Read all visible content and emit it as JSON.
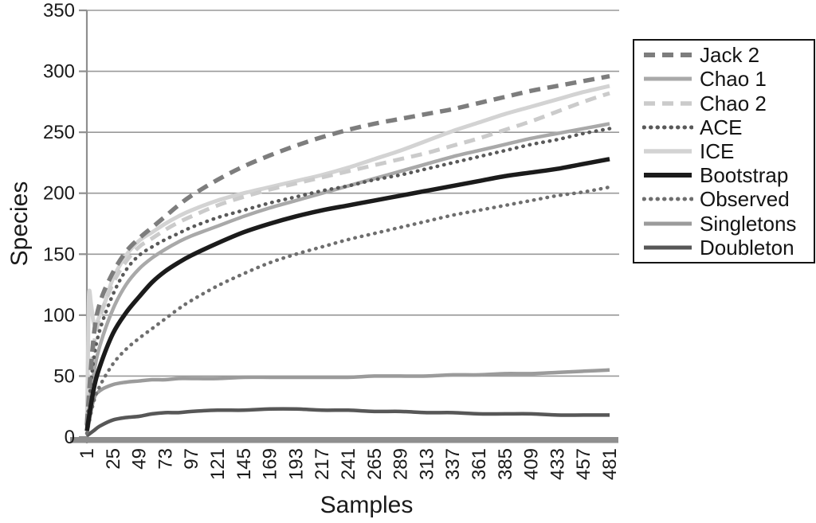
{
  "chart_data": {
    "type": "line",
    "title": "",
    "xlabel": "Samples",
    "ylabel": "Species",
    "xlim": [
      1,
      481
    ],
    "ylim": [
      0,
      350
    ],
    "grid": true,
    "legend_position": "right-outside",
    "y_ticks": [
      0,
      50,
      100,
      150,
      200,
      250,
      300,
      350
    ],
    "x_ticks": [
      1,
      25,
      49,
      73,
      97,
      121,
      145,
      169,
      193,
      217,
      241,
      265,
      289,
      313,
      337,
      361,
      385,
      409,
      433,
      457,
      481
    ],
    "series": [
      {
        "name": "Jack 2",
        "style": "dashed",
        "color": "#7d7d7d",
        "width": 5.5,
        "points": [
          [
            1,
            10
          ],
          [
            7,
            80
          ],
          [
            13,
            110
          ],
          [
            25,
            135
          ],
          [
            37,
            152
          ],
          [
            49,
            163
          ],
          [
            61,
            172
          ],
          [
            73,
            181
          ],
          [
            85,
            190
          ],
          [
            97,
            198
          ],
          [
            121,
            211
          ],
          [
            145,
            222
          ],
          [
            169,
            231
          ],
          [
            193,
            239
          ],
          [
            217,
            246
          ],
          [
            241,
            252
          ],
          [
            265,
            257
          ],
          [
            289,
            261
          ],
          [
            313,
            265
          ],
          [
            337,
            269
          ],
          [
            361,
            274
          ],
          [
            385,
            279
          ],
          [
            409,
            284
          ],
          [
            433,
            288
          ],
          [
            457,
            292
          ],
          [
            481,
            296
          ]
        ]
      },
      {
        "name": "Chao 1",
        "style": "solid",
        "color": "#a9a9a9",
        "width": 4.5,
        "points": [
          [
            1,
            8
          ],
          [
            7,
            50
          ],
          [
            13,
            75
          ],
          [
            25,
            105
          ],
          [
            37,
            125
          ],
          [
            49,
            138
          ],
          [
            61,
            147
          ],
          [
            73,
            154
          ],
          [
            85,
            160
          ],
          [
            97,
            165
          ],
          [
            121,
            173
          ],
          [
            145,
            181
          ],
          [
            169,
            188
          ],
          [
            193,
            194
          ],
          [
            217,
            200
          ],
          [
            241,
            206
          ],
          [
            265,
            212
          ],
          [
            289,
            218
          ],
          [
            313,
            224
          ],
          [
            337,
            230
          ],
          [
            361,
            235
          ],
          [
            385,
            240
          ],
          [
            409,
            245
          ],
          [
            433,
            249
          ],
          [
            457,
            253
          ],
          [
            481,
            257
          ]
        ]
      },
      {
        "name": "Chao 2",
        "style": "dashed",
        "color": "#cbcbcb",
        "width": 5,
        "points": [
          [
            1,
            12
          ],
          [
            7,
            72
          ],
          [
            13,
            98
          ],
          [
            25,
            126
          ],
          [
            37,
            144
          ],
          [
            49,
            156
          ],
          [
            61,
            163
          ],
          [
            73,
            170
          ],
          [
            85,
            176
          ],
          [
            97,
            181
          ],
          [
            121,
            190
          ],
          [
            145,
            197
          ],
          [
            169,
            203
          ],
          [
            193,
            208
          ],
          [
            217,
            213
          ],
          [
            241,
            218
          ],
          [
            265,
            223
          ],
          [
            289,
            228
          ],
          [
            313,
            233
          ],
          [
            337,
            239
          ],
          [
            361,
            245
          ],
          [
            385,
            252
          ],
          [
            409,
            259
          ],
          [
            433,
            267
          ],
          [
            457,
            275
          ],
          [
            481,
            282
          ]
        ]
      },
      {
        "name": "ACE",
        "style": "dotted",
        "color": "#595959",
        "width": 4.5,
        "points": [
          [
            1,
            10
          ],
          [
            7,
            62
          ],
          [
            13,
            88
          ],
          [
            25,
            117
          ],
          [
            37,
            137
          ],
          [
            49,
            149
          ],
          [
            61,
            156
          ],
          [
            73,
            162
          ],
          [
            85,
            167
          ],
          [
            97,
            172
          ],
          [
            121,
            180
          ],
          [
            145,
            186
          ],
          [
            169,
            192
          ],
          [
            193,
            197
          ],
          [
            217,
            202
          ],
          [
            241,
            206
          ],
          [
            265,
            211
          ],
          [
            289,
            215
          ],
          [
            313,
            220
          ],
          [
            337,
            225
          ],
          [
            361,
            230
          ],
          [
            385,
            235
          ],
          [
            409,
            240
          ],
          [
            433,
            244
          ],
          [
            457,
            249
          ],
          [
            481,
            253
          ]
        ]
      },
      {
        "name": "ICE",
        "style": "solid",
        "color": "#d3d3d3",
        "width": 5,
        "points": [
          [
            1,
            8
          ],
          [
            2,
            65
          ],
          [
            3,
            118
          ],
          [
            5,
            108
          ],
          [
            8,
            92
          ],
          [
            13,
            100
          ],
          [
            19,
            114
          ],
          [
            25,
            130
          ],
          [
            37,
            149
          ],
          [
            49,
            161
          ],
          [
            61,
            168
          ],
          [
            73,
            175
          ],
          [
            85,
            181
          ],
          [
            97,
            186
          ],
          [
            121,
            194
          ],
          [
            145,
            200
          ],
          [
            169,
            205
          ],
          [
            193,
            210
          ],
          [
            217,
            215
          ],
          [
            241,
            221
          ],
          [
            265,
            228
          ],
          [
            289,
            235
          ],
          [
            313,
            243
          ],
          [
            337,
            251
          ],
          [
            361,
            258
          ],
          [
            385,
            265
          ],
          [
            409,
            271
          ],
          [
            433,
            277
          ],
          [
            457,
            283
          ],
          [
            481,
            288
          ]
        ]
      },
      {
        "name": "Bootstrap",
        "style": "solid",
        "color": "#1b1b1b",
        "width": 5.5,
        "points": [
          [
            1,
            5
          ],
          [
            7,
            38
          ],
          [
            13,
            58
          ],
          [
            25,
            85
          ],
          [
            37,
            102
          ],
          [
            49,
            115
          ],
          [
            61,
            127
          ],
          [
            73,
            136
          ],
          [
            85,
            143
          ],
          [
            97,
            149
          ],
          [
            121,
            159
          ],
          [
            145,
            168
          ],
          [
            169,
            175
          ],
          [
            193,
            181
          ],
          [
            217,
            186
          ],
          [
            241,
            190
          ],
          [
            265,
            194
          ],
          [
            289,
            198
          ],
          [
            313,
            202
          ],
          [
            337,
            206
          ],
          [
            361,
            210
          ],
          [
            385,
            214
          ],
          [
            409,
            217
          ],
          [
            433,
            220
          ],
          [
            457,
            224
          ],
          [
            481,
            228
          ]
        ]
      },
      {
        "name": "Observed",
        "style": "dotted",
        "color": "#6e6e6e",
        "width": 4.5,
        "points": [
          [
            1,
            3
          ],
          [
            7,
            28
          ],
          [
            13,
            42
          ],
          [
            25,
            60
          ],
          [
            37,
            72
          ],
          [
            49,
            81
          ],
          [
            61,
            89
          ],
          [
            73,
            97
          ],
          [
            85,
            105
          ],
          [
            97,
            112
          ],
          [
            121,
            124
          ],
          [
            145,
            134
          ],
          [
            169,
            143
          ],
          [
            193,
            150
          ],
          [
            217,
            156
          ],
          [
            241,
            162
          ],
          [
            265,
            167
          ],
          [
            289,
            172
          ],
          [
            313,
            177
          ],
          [
            337,
            182
          ],
          [
            361,
            186
          ],
          [
            385,
            190
          ],
          [
            409,
            194
          ],
          [
            433,
            198
          ],
          [
            457,
            201
          ],
          [
            481,
            205
          ]
        ]
      },
      {
        "name": "Singletons",
        "style": "solid",
        "color": "#9b9b9b",
        "width": 4.5,
        "points": [
          [
            1,
            2
          ],
          [
            7,
            30
          ],
          [
            13,
            38
          ],
          [
            25,
            43
          ],
          [
            37,
            45
          ],
          [
            49,
            46
          ],
          [
            61,
            47
          ],
          [
            73,
            47
          ],
          [
            85,
            48
          ],
          [
            97,
            48
          ],
          [
            121,
            48
          ],
          [
            145,
            49
          ],
          [
            169,
            49
          ],
          [
            193,
            49
          ],
          [
            217,
            49
          ],
          [
            241,
            49
          ],
          [
            265,
            50
          ],
          [
            289,
            50
          ],
          [
            313,
            50
          ],
          [
            337,
            51
          ],
          [
            361,
            51
          ],
          [
            385,
            52
          ],
          [
            409,
            52
          ],
          [
            433,
            53
          ],
          [
            457,
            54
          ],
          [
            481,
            55
          ]
        ]
      },
      {
        "name": "Doubleton",
        "style": "solid",
        "color": "#575757",
        "width": 4.5,
        "points": [
          [
            1,
            1
          ],
          [
            7,
            5
          ],
          [
            13,
            9
          ],
          [
            25,
            14
          ],
          [
            37,
            16
          ],
          [
            49,
            17
          ],
          [
            61,
            19
          ],
          [
            73,
            20
          ],
          [
            85,
            20
          ],
          [
            97,
            21
          ],
          [
            121,
            22
          ],
          [
            145,
            22
          ],
          [
            169,
            23
          ],
          [
            193,
            23
          ],
          [
            217,
            22
          ],
          [
            241,
            22
          ],
          [
            265,
            21
          ],
          [
            289,
            21
          ],
          [
            313,
            20
          ],
          [
            337,
            20
          ],
          [
            361,
            19
          ],
          [
            385,
            19
          ],
          [
            409,
            19
          ],
          [
            433,
            18
          ],
          [
            457,
            18
          ],
          [
            481,
            18
          ]
        ]
      }
    ]
  },
  "colors": {
    "axis": "#8f8f8f",
    "gridline": "#999999",
    "text": "#1a1a1a",
    "legend_border": "#141414",
    "background": "#ffffff"
  }
}
